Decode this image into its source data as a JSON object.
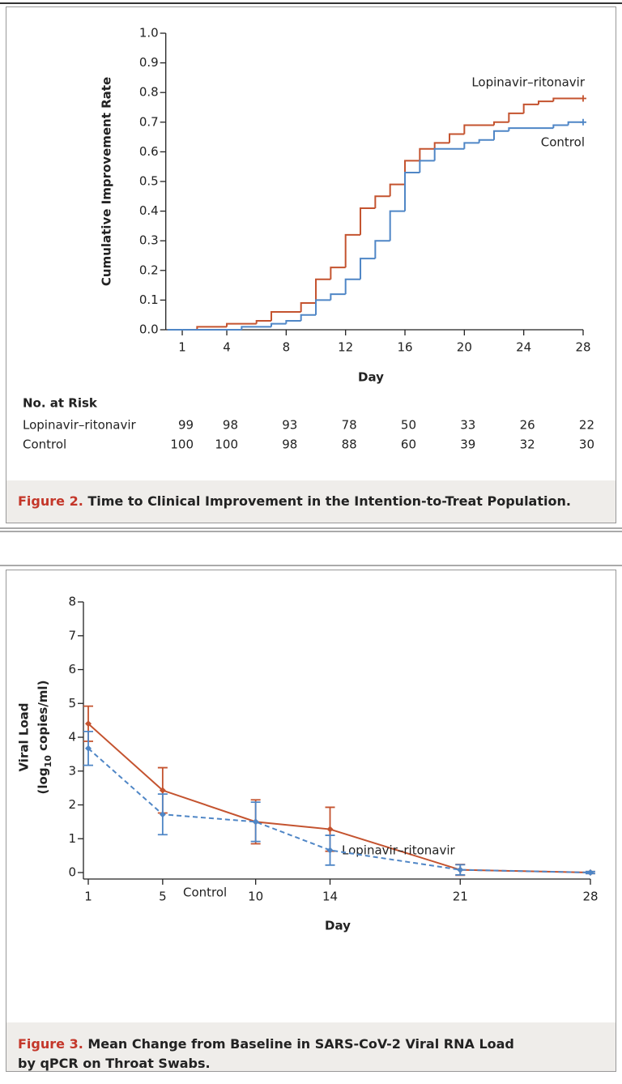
{
  "chart_data": [
    {
      "type": "step",
      "ylabel": "Cumulative Improvement Rate",
      "xlabel": "Day",
      "xlim": [
        0,
        28
      ],
      "xticks": [
        1,
        4,
        8,
        12,
        16,
        20,
        24,
        28
      ],
      "ylim": [
        0,
        1
      ],
      "yticks": [
        {
          "value": 0,
          "label": "0.0"
        },
        0.1,
        0.2,
        0.3,
        0.4,
        0.5,
        0.6,
        0.7,
        0.8,
        0.9,
        {
          "value": 1,
          "label": "1.0"
        }
      ],
      "series": [
        {
          "name": "Lopinavir–ritonavir",
          "color": "#c4532f",
          "x": [
            0,
            2,
            4,
            6,
            7,
            9,
            10,
            11,
            12,
            13,
            14,
            15,
            16,
            17,
            18,
            19,
            20,
            22,
            23,
            24,
            25,
            26,
            28
          ],
          "values": [
            0,
            0.01,
            0.02,
            0.03,
            0.06,
            0.09,
            0.17,
            0.21,
            0.32,
            0.41,
            0.45,
            0.49,
            0.57,
            0.61,
            0.63,
            0.66,
            0.69,
            0.7,
            0.73,
            0.76,
            0.77,
            0.78,
            0.78
          ]
        },
        {
          "name": "Control",
          "color": "#4f86c6",
          "x": [
            0,
            5,
            7,
            8,
            9,
            10,
            11,
            12,
            13,
            14,
            15,
            16,
            17,
            18,
            20,
            21,
            22,
            23,
            26,
            27,
            28
          ],
          "values": [
            0,
            0.01,
            0.02,
            0.03,
            0.05,
            0.1,
            0.12,
            0.17,
            0.24,
            0.3,
            0.4,
            0.53,
            0.57,
            0.61,
            0.63,
            0.64,
            0.67,
            0.68,
            0.69,
            0.7,
            0.7
          ]
        }
      ],
      "at_risk": {
        "title": "No. at Risk",
        "rows": [
          [
            99,
            98,
            93,
            78,
            50,
            33,
            26,
            22
          ],
          [
            100,
            100,
            98,
            88,
            60,
            39,
            32,
            30
          ]
        ]
      },
      "caption_label": "Figure 2.",
      "caption": [
        "Time to Clinical Improvement in the Intention-to-Treat Population."
      ]
    },
    {
      "type": "line",
      "ylabel": [
        "Viral Load",
        [
          "(log",
          "10",
          " copies/ml)"
        ]
      ],
      "xlabel": "Day",
      "x": [
        1,
        5,
        10,
        14,
        21,
        28
      ],
      "xlim": [
        1,
        28
      ],
      "xticks": [
        1,
        5,
        10,
        14,
        21,
        28
      ],
      "ylim": [
        0,
        8
      ],
      "yticks": [
        0,
        1,
        2,
        3,
        4,
        5,
        6,
        7,
        8
      ],
      "series": [
        {
          "name": "Lopinavir–ritonavir",
          "color": "#c4532f",
          "dashed": false,
          "values": [
            4.4,
            2.43,
            1.5,
            1.28,
            0.08,
            0.0
          ],
          "errors": [
            0.52,
            0.67,
            0.65,
            0.65,
            0.16,
            0.03
          ]
        },
        {
          "name": "Control",
          "color": "#4f86c6",
          "dashed": true,
          "values": [
            3.67,
            1.72,
            1.5,
            0.66,
            0.08,
            0.0
          ],
          "errors": [
            0.5,
            0.6,
            0.58,
            0.44,
            0.15,
            0.03
          ]
        }
      ],
      "caption_label": "Figure 3.",
      "caption": [
        "Mean Change from Baseline in SARS-CoV-2 Viral RNA Load",
        "by qPCR on Throat Swabs."
      ]
    }
  ]
}
